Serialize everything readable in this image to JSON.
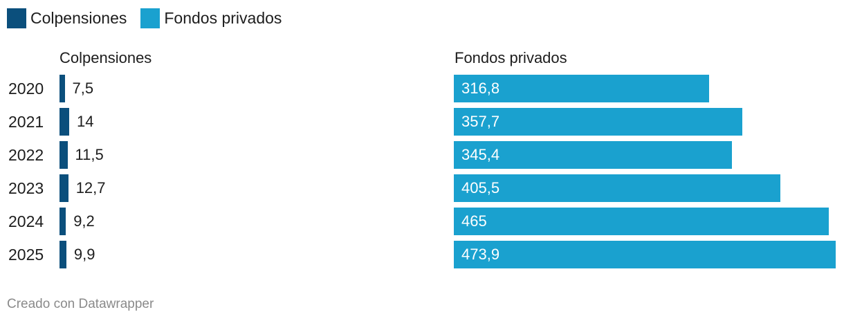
{
  "legend": [
    {
      "label": "Colpensiones",
      "color": "#0b4f7c"
    },
    {
      "label": "Fondos privados",
      "color": "#1aa1cf"
    }
  ],
  "chart_data": {
    "type": "bar",
    "orientation": "horizontal",
    "categories": [
      "2020",
      "2021",
      "2022",
      "2023",
      "2024",
      "2025"
    ],
    "series": [
      {
        "name": "Colpensiones",
        "color": "#0b4f7c",
        "values": [
          7.5,
          14,
          11.5,
          12.7,
          9.2,
          9.9
        ],
        "labels": [
          "7,5",
          "14",
          "11,5",
          "12,7",
          "9,2",
          "9,9"
        ]
      },
      {
        "name": "Fondos privados",
        "color": "#1aa1cf",
        "values": [
          316.8,
          357.7,
          345.4,
          405.5,
          465,
          473.9
        ],
        "labels": [
          "316,8",
          "357,7",
          "345,4",
          "405,5",
          "465",
          "473,9"
        ]
      }
    ],
    "panel_titles": [
      "Colpensiones",
      "Fondos privados"
    ],
    "grid": false,
    "legend_position": "top-left"
  },
  "footer": {
    "credit": "Creado con Datawrapper"
  }
}
